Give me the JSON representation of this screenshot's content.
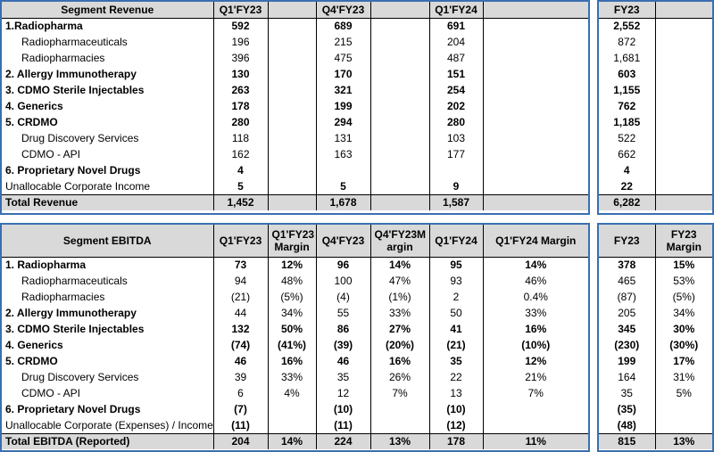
{
  "revenue": {
    "headers": [
      "Segment Revenue",
      "Q1'FY23",
      "",
      "Q4'FY23",
      "",
      "Q1'FY24",
      "",
      "FY23",
      ""
    ],
    "rows": [
      {
        "c": [
          "1.Radiopharma",
          "592",
          "",
          "689",
          "",
          "691",
          "",
          "2,552",
          ""
        ],
        "bold": true
      },
      {
        "c": [
          "Radiopharmaceuticals",
          "196",
          "",
          "215",
          "",
          "204",
          "",
          "872",
          ""
        ],
        "indent": true
      },
      {
        "c": [
          "Radiopharmacies",
          "396",
          "",
          "475",
          "",
          "487",
          "",
          "1,681",
          ""
        ],
        "indent": true
      },
      {
        "c": [
          "2. Allergy Immunotherapy",
          "130",
          "",
          "170",
          "",
          "151",
          "",
          "603",
          ""
        ],
        "bold": true
      },
      {
        "c": [
          "3. CDMO Sterile Injectables",
          "263",
          "",
          "321",
          "",
          "254",
          "",
          "1,155",
          ""
        ],
        "bold": true
      },
      {
        "c": [
          "4. Generics",
          "178",
          "",
          "199",
          "",
          "202",
          "",
          "762",
          ""
        ],
        "bold": true
      },
      {
        "c": [
          "5. CRDMO",
          "280",
          "",
          "294",
          "",
          "280",
          "",
          "1,185",
          ""
        ],
        "bold": true
      },
      {
        "c": [
          "Drug Discovery Services",
          "118",
          "",
          "131",
          "",
          "103",
          "",
          "522",
          ""
        ],
        "indent": true
      },
      {
        "c": [
          "CDMO - API",
          "162",
          "",
          "163",
          "",
          "177",
          "",
          "662",
          ""
        ],
        "indent": true
      },
      {
        "c": [
          "6. Proprietary Novel Drugs",
          "4",
          "",
          "",
          "",
          "",
          "",
          "4",
          ""
        ],
        "bold": true
      },
      {
        "c": [
          "Unallocable Corporate Income",
          "5",
          "",
          "5",
          "",
          "9",
          "",
          "22",
          ""
        ],
        "numbold": true
      },
      {
        "c": [
          "Total Revenue",
          "1,452",
          "",
          "1,678",
          "",
          "1,587",
          "",
          "6,282",
          ""
        ],
        "total": true
      }
    ]
  },
  "ebitda": {
    "headers": [
      "Segment EBITDA",
      "Q1'FY23",
      "Q1'FY23 Margin",
      "Q4'FY23",
      "Q4'FY23M argin",
      "Q1'FY24",
      "Q1'FY24 Margin",
      "FY23",
      "FY23 Margin"
    ],
    "rows": [
      {
        "c": [
          "1. Radiopharma",
          "73",
          "12%",
          "96",
          "14%",
          "95",
          "14%",
          "378",
          "15%"
        ],
        "bold": true
      },
      {
        "c": [
          "Radiopharmaceuticals",
          "94",
          "48%",
          "100",
          "47%",
          "93",
          "46%",
          "465",
          "53%"
        ],
        "indent": true
      },
      {
        "c": [
          "Radiopharmacies",
          "(21)",
          "(5%)",
          "(4)",
          "(1%)",
          "2",
          "0.4%",
          "(87)",
          "(5%)"
        ],
        "indent": true
      },
      {
        "c": [
          "2. Allergy Immunotherapy",
          "44",
          "34%",
          "55",
          "33%",
          "50",
          "33%",
          "205",
          "34%"
        ],
        "bold": true,
        "plainnums": true
      },
      {
        "c": [
          "3. CDMO Sterile Injectables",
          "132",
          "50%",
          "86",
          "27%",
          "41",
          "16%",
          "345",
          "30%"
        ],
        "bold": true
      },
      {
        "c": [
          "4. Generics",
          "(74)",
          "(41%)",
          "(39)",
          "(20%)",
          "(21)",
          "(10%)",
          "(230)",
          "(30%)"
        ],
        "bold": true
      },
      {
        "c": [
          "5. CRDMO",
          "46",
          "16%",
          "46",
          "16%",
          "35",
          "12%",
          "199",
          "17%"
        ],
        "bold": true
      },
      {
        "c": [
          "Drug Discovery Services",
          "39",
          "33%",
          "35",
          "26%",
          "22",
          "21%",
          "164",
          "31%"
        ],
        "indent": true
      },
      {
        "c": [
          "CDMO - API",
          "6",
          "4%",
          "12",
          "7%",
          "13",
          "7%",
          "35",
          "5%"
        ],
        "indent": true
      },
      {
        "c": [
          "6. Proprietary Novel Drugs",
          "(7)",
          "",
          "(10)",
          "",
          "(10)",
          "",
          "(35)",
          ""
        ],
        "bold": true
      },
      {
        "c": [
          "Unallocable Corporate (Expenses) / Income",
          "(11)",
          "",
          "(11)",
          "",
          "(12)",
          "",
          "(48)",
          ""
        ],
        "numbold": true
      },
      {
        "c": [
          "Total EBITDA (Reported)",
          "204",
          "14%",
          "224",
          "13%",
          "178",
          "11%",
          "815",
          "13%"
        ],
        "total": true
      }
    ]
  }
}
